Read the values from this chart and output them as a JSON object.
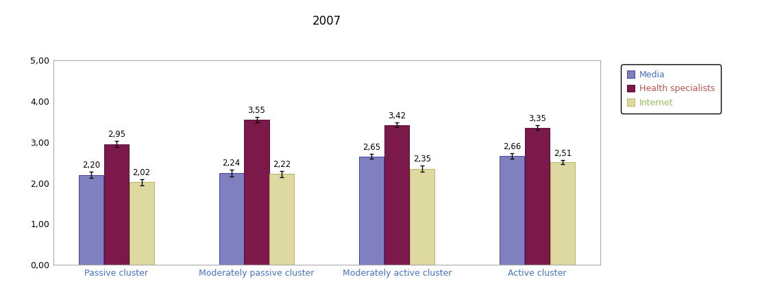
{
  "title": "2007",
  "clusters": [
    "Passive cluster",
    "Moderately passive cluster",
    "Moderately active cluster",
    "Active cluster"
  ],
  "series": [
    "Media",
    "Health specialists",
    "Internet"
  ],
  "values": {
    "Media": [
      2.2,
      2.24,
      2.65,
      2.66
    ],
    "Health specialists": [
      2.95,
      3.55,
      3.42,
      3.35
    ],
    "Internet": [
      2.02,
      2.22,
      2.35,
      2.51
    ]
  },
  "errors": {
    "Media": [
      0.08,
      0.08,
      0.06,
      0.06
    ],
    "Health specialists": [
      0.08,
      0.07,
      0.06,
      0.06
    ],
    "Internet": [
      0.07,
      0.07,
      0.07,
      0.05
    ]
  },
  "bar_colors": {
    "Media": "#8080c0",
    "Health specialists": "#7b1a4a",
    "Internet": "#ddd9a0"
  },
  "bar_edge_colors": {
    "Media": "#4040a0",
    "Health specialists": "#5a0a30",
    "Internet": "#b8b460"
  },
  "ylim": [
    0,
    5.0
  ],
  "yticks": [
    0.0,
    1.0,
    2.0,
    3.0,
    4.0,
    5.0
  ],
  "ytick_labels": [
    "0,00",
    "1,00",
    "2,00",
    "3,00",
    "4,00",
    "5,00"
  ],
  "title_fontsize": 12,
  "label_fontsize": 9,
  "value_fontsize": 8.5,
  "tick_fontsize": 9,
  "legend_fontsize": 9,
  "bar_width": 0.18,
  "xlabel_color": "#4472c4",
  "legend_text_colors": {
    "Media": "#4472c4",
    "Health specialists": "#c0504d",
    "Internet": "#9bbb59"
  },
  "plot_bgcolor": "#f0f0f0",
  "spine_color": "#aaaaaa"
}
